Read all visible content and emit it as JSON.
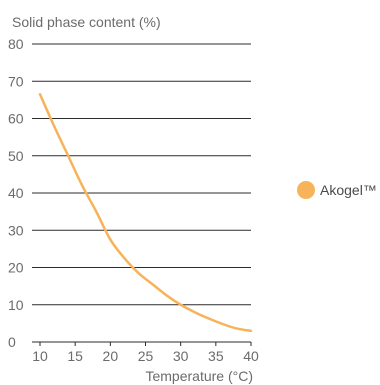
{
  "chart_data": {
    "type": "line",
    "title": "",
    "ylabel": "Solid phase content (%)",
    "xlabel": "Temperature (°C)",
    "xlim": [
      10,
      40
    ],
    "ylim": [
      0,
      80
    ],
    "x_ticks": [
      10,
      15,
      20,
      25,
      30,
      35,
      40
    ],
    "y_ticks": [
      0,
      10,
      20,
      30,
      40,
      50,
      60,
      70,
      80
    ],
    "grid": "horizontal",
    "legend_position": "right",
    "series": [
      {
        "name": "Akogel™",
        "color": "#F7B35A",
        "x": [
          10,
          12,
          14,
          16,
          18,
          20,
          22,
          24,
          26,
          28,
          30,
          32,
          34,
          36,
          38,
          40
        ],
        "y": [
          66.5,
          58,
          50,
          42,
          35,
          27.5,
          22.5,
          18.5,
          15.5,
          12.5,
          10,
          8,
          6.3,
          4.8,
          3.6,
          3
        ]
      }
    ]
  }
}
